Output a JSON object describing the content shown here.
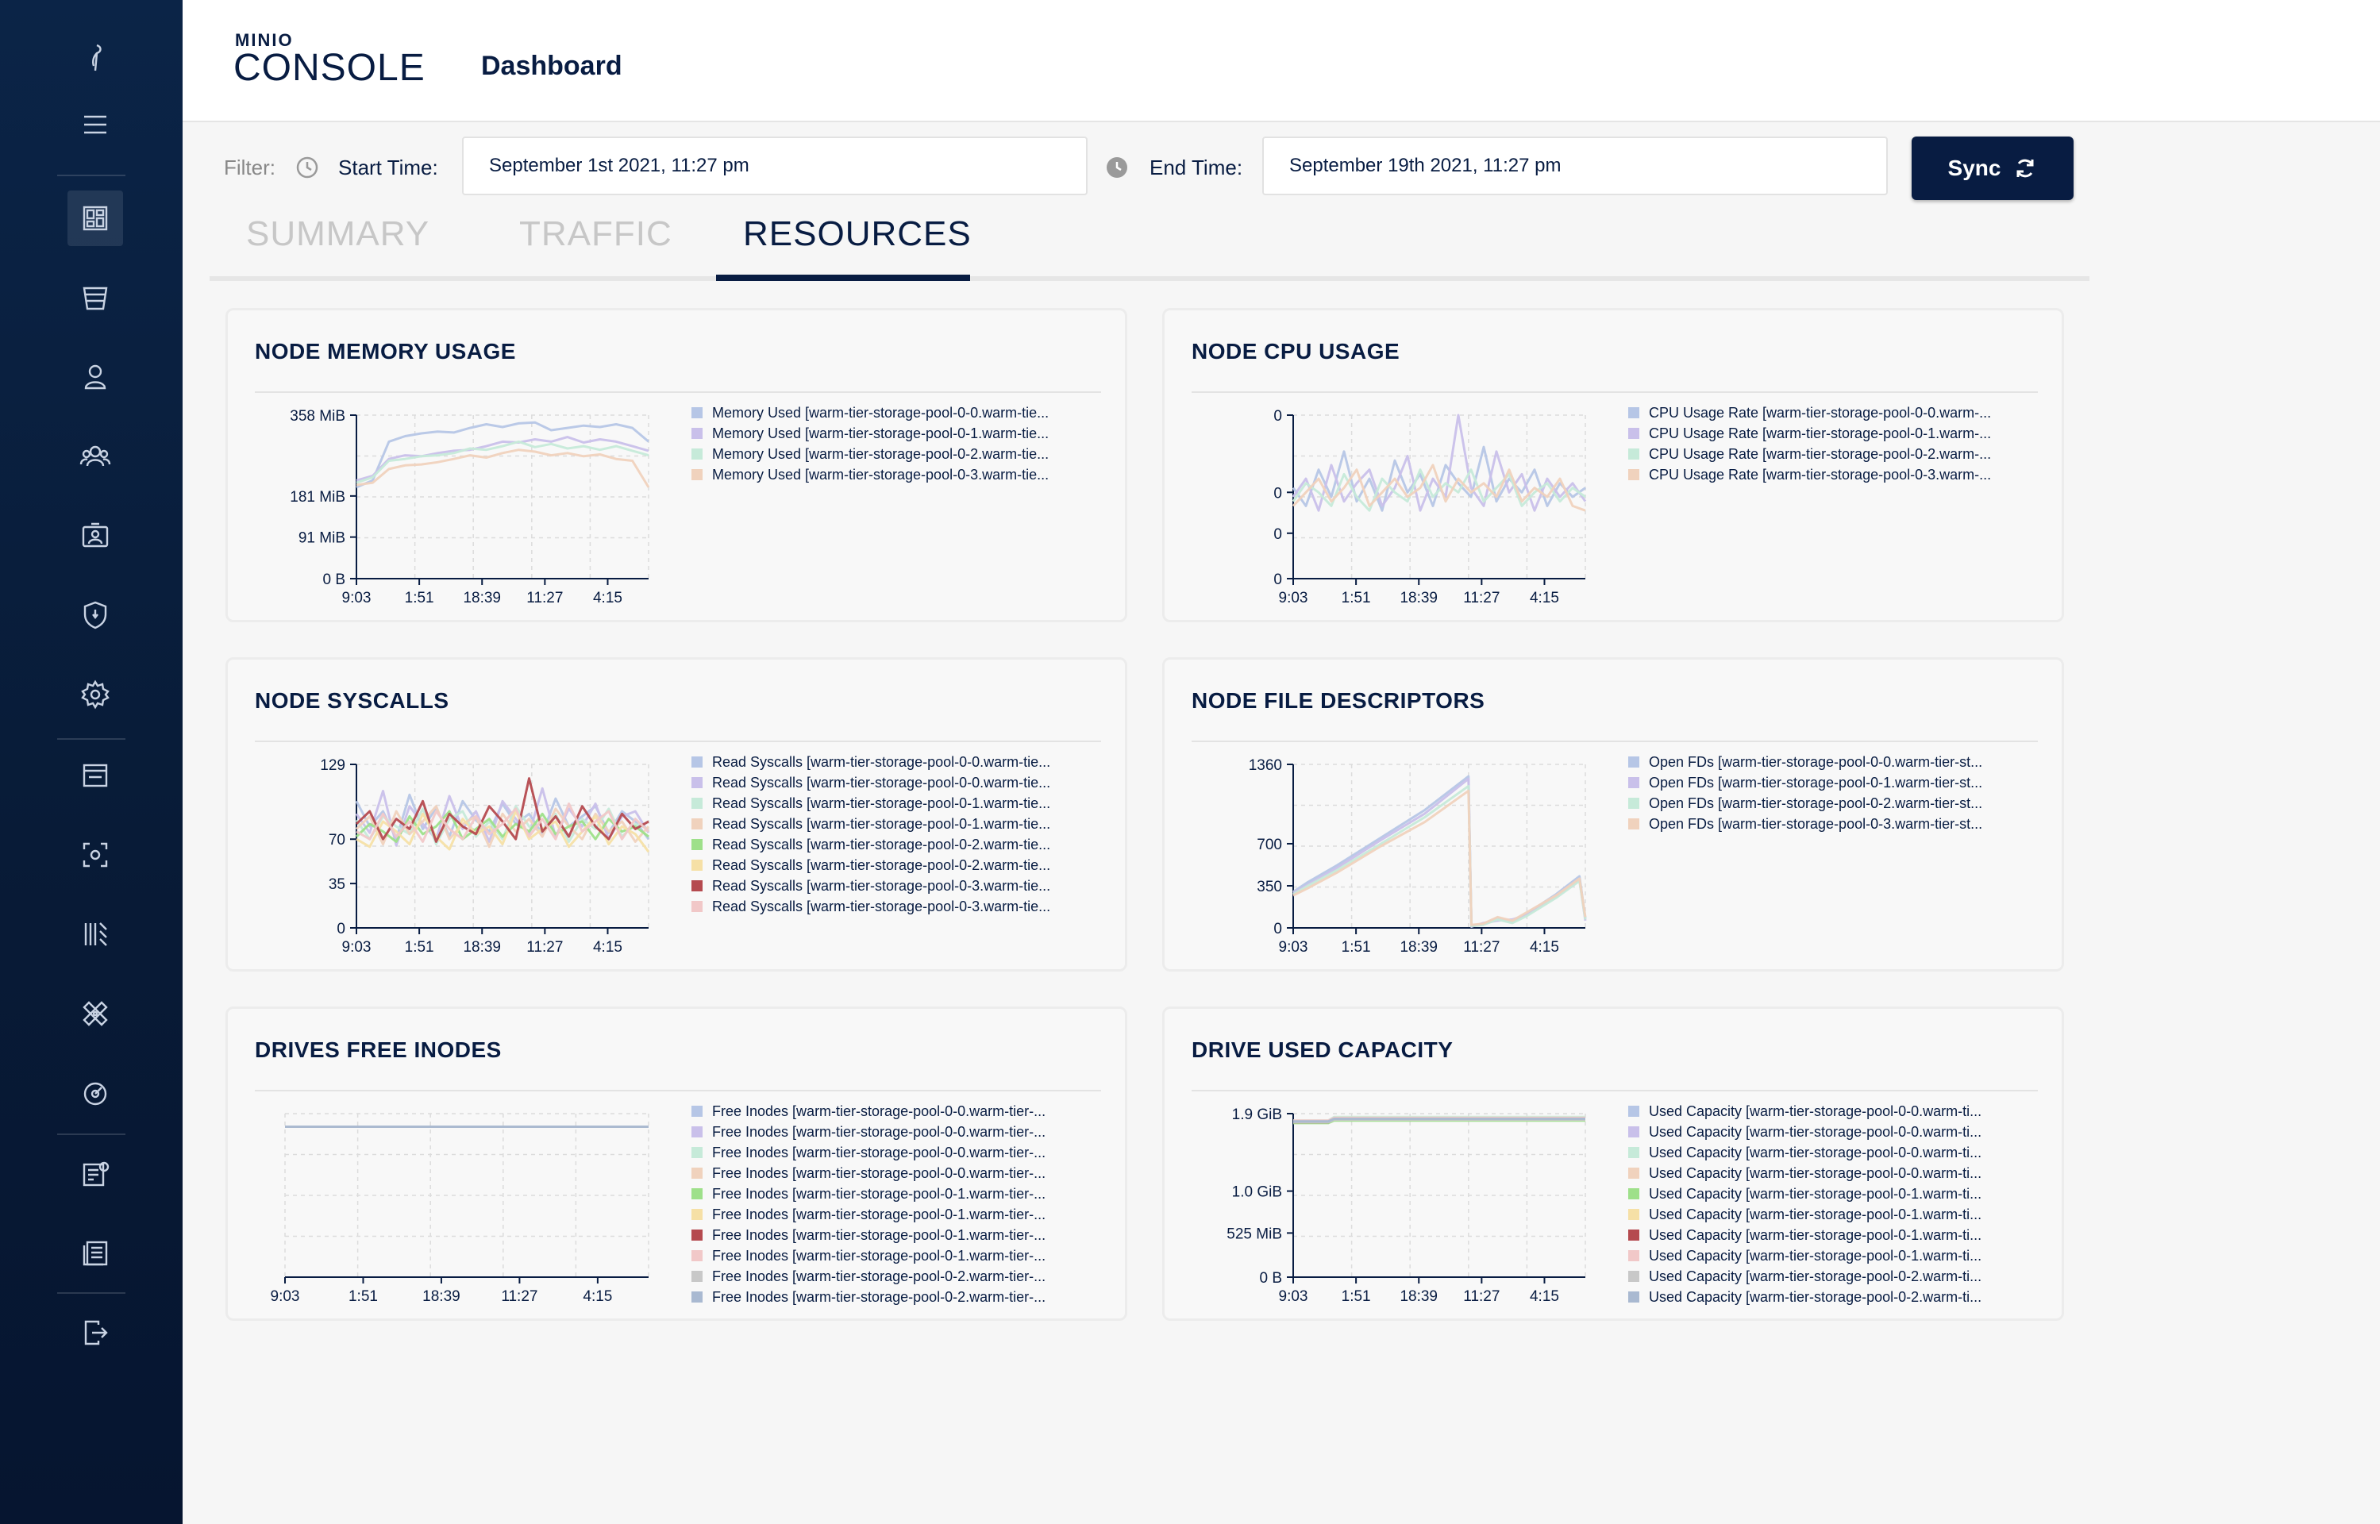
{
  "header": {
    "logo_top": "MINIO",
    "logo_main": "CONSOLE",
    "title": "Dashboard"
  },
  "sidebar": {
    "items": [
      {
        "icon": "minio-bird-icon"
      },
      {
        "icon": "menu-icon"
      },
      {
        "icon": "dashboard-icon",
        "active": true
      },
      {
        "icon": "bucket-icon"
      },
      {
        "icon": "user-icon"
      },
      {
        "icon": "groups-icon"
      },
      {
        "icon": "service-accounts-icon"
      },
      {
        "icon": "shield-icon"
      },
      {
        "icon": "settings-icon"
      },
      {
        "icon": "window-icon"
      },
      {
        "icon": "screenshot-icon"
      },
      {
        "icon": "tiers-icon"
      },
      {
        "icon": "heal-icon"
      },
      {
        "icon": "speedometer-icon"
      },
      {
        "icon": "license-icon"
      },
      {
        "icon": "documentation-icon"
      },
      {
        "icon": "logout-icon"
      }
    ]
  },
  "filter": {
    "label": "Filter:",
    "start_label": "Start Time:",
    "start_value": "September 1st 2021, 11:27 pm",
    "end_label": "End Time:",
    "end_value": "September 19th 2021, 11:27 pm",
    "sync_label": "Sync"
  },
  "tabs": [
    {
      "label": "SUMMARY",
      "active": false
    },
    {
      "label": "TRAFFIC",
      "active": false
    },
    {
      "label": "RESOURCES",
      "active": true
    }
  ],
  "colors": {
    "navy": "#081c42",
    "series": [
      "#b6c6e6",
      "#c9c0ea",
      "#c6ead9",
      "#f0d2bd",
      "#9ee08a",
      "#f6e0a6",
      "#b54a4f",
      "#f1c8c8",
      "#c8c8c8",
      "#a9b9d1"
    ]
  },
  "chart_data": [
    {
      "type": "line",
      "title": "NODE MEMORY USAGE",
      "x_ticks": [
        "9:03",
        "1:51",
        "18:39",
        "11:27",
        "4:15"
      ],
      "y_ticks": [
        "358 MiB",
        "181 MiB",
        "91 MiB",
        "0 B"
      ],
      "y_tick_values": [
        358,
        181,
        91,
        0
      ],
      "ylim": [
        0,
        358
      ],
      "grid": true,
      "legend_position": "right",
      "series": [
        {
          "name": "Memory Used [warm-tier-storage-pool-0-0.warm-tie...",
          "values": [
            200,
            215,
            300,
            312,
            318,
            322,
            320,
            330,
            338,
            332,
            340,
            342,
            325,
            330,
            335,
            332,
            338,
            330,
            300
          ]
        },
        {
          "name": "Memory Used [warm-tier-storage-pool-0-1.warm-tie...",
          "values": [
            215,
            225,
            262,
            270,
            268,
            275,
            280,
            282,
            290,
            300,
            298,
            305,
            300,
            310,
            298,
            305,
            300,
            290,
            280
          ]
        },
        {
          "name": "Memory Used [warm-tier-storage-pool-0-2.warm-tie...",
          "values": [
            210,
            222,
            258,
            262,
            268,
            270,
            275,
            285,
            282,
            290,
            300,
            288,
            295,
            285,
            290,
            282,
            290,
            280,
            270
          ]
        },
        {
          "name": "Memory Used [warm-tier-storage-pool-0-3.warm-tie...",
          "values": [
            205,
            210,
            240,
            248,
            250,
            255,
            262,
            270,
            265,
            275,
            282,
            278,
            270,
            275,
            268,
            272,
            262,
            258,
            200
          ]
        }
      ]
    },
    {
      "type": "line",
      "title": "NODE CPU USAGE",
      "x_ticks": [
        "9:03",
        "1:51",
        "18:39",
        "11:27",
        "4:15"
      ],
      "y_ticks": [
        "0",
        "0",
        "0",
        "0"
      ],
      "y_tick_values": [
        0.036,
        0.019,
        0.01,
        0
      ],
      "ylim": [
        0,
        0.036
      ],
      "grid": true,
      "legend_position": "right",
      "series": [
        {
          "name": "CPU Usage Rate [warm-tier-storage-pool-0-0.warm-...",
          "values": [
            0.02,
            0.016,
            0.024,
            0.018,
            0.028,
            0.017,
            0.022,
            0.015,
            0.026,
            0.019,
            0.023,
            0.016,
            0.025,
            0.021,
            0.018,
            0.029,
            0.017,
            0.022,
            0.019,
            0.024,
            0.016,
            0.021,
            0.018,
            0.02
          ]
        },
        {
          "name": "CPU Usage Rate [warm-tier-storage-pool-0-1.warm-...",
          "values": [
            0.018,
            0.022,
            0.015,
            0.025,
            0.017,
            0.021,
            0.024,
            0.016,
            0.02,
            0.027,
            0.015,
            0.022,
            0.018,
            0.036,
            0.02,
            0.016,
            0.028,
            0.019,
            0.023,
            0.015,
            0.022,
            0.018,
            0.021,
            0.017
          ]
        },
        {
          "name": "CPU Usage Rate [warm-tier-storage-pool-0-2.warm-...",
          "values": [
            0.017,
            0.021,
            0.019,
            0.016,
            0.023,
            0.018,
            0.015,
            0.022,
            0.019,
            0.017,
            0.024,
            0.018,
            0.021,
            0.019,
            0.024,
            0.017,
            0.02,
            0.023,
            0.016,
            0.019,
            0.021,
            0.017,
            0.02,
            0.018
          ]
        },
        {
          "name": "CPU Usage Rate [warm-tier-storage-pool-0-3.warm-...",
          "values": [
            0.016,
            0.019,
            0.022,
            0.017,
            0.02,
            0.024,
            0.016,
            0.019,
            0.022,
            0.018,
            0.02,
            0.025,
            0.017,
            0.022,
            0.019,
            0.021,
            0.018,
            0.024,
            0.017,
            0.02,
            0.018,
            0.022,
            0.016,
            0.015
          ]
        }
      ]
    },
    {
      "type": "line",
      "title": "NODE SYSCALLS",
      "x_ticks": [
        "9:03",
        "1:51",
        "18:39",
        "11:27",
        "4:15"
      ],
      "y_ticks": [
        "129",
        "70",
        "35",
        "0"
      ],
      "y_tick_values": [
        129,
        70,
        35,
        0
      ],
      "ylim": [
        0,
        129
      ],
      "grid": true,
      "legend_position": "right",
      "series": [
        {
          "name": "Read Syscalls [warm-tier-storage-pool-0-0.warm-tie...",
          "values": [
            100,
            80,
            92,
            70,
            105,
            78,
            95,
            72,
            100,
            85,
            76,
            98,
            82,
            90,
            74,
            102,
            80,
            88,
            96,
            75,
            92,
            84,
            70
          ]
        },
        {
          "name": "Read Syscalls [warm-tier-storage-pool-0-0.warm-tie...",
          "values": [
            90,
            75,
            108,
            65,
            96,
            82,
            70,
            104,
            78,
            92,
            68,
            100,
            86,
            74,
            110,
            72,
            94,
            80,
            98,
            70,
            88,
            92,
            75
          ]
        },
        {
          "name": "Read Syscalls [warm-tier-storage-pool-0-1.warm-tie...",
          "values": [
            85,
            70,
            88,
            80,
            74,
            94,
            66,
            86,
            92,
            72,
            84,
            70,
            96,
            80,
            76,
            90,
            68,
            86,
            78,
            94,
            72,
            82,
            78
          ]
        },
        {
          "name": "Read Syscalls [warm-tier-storage-pool-0-1.warm-tie...",
          "values": [
            78,
            88,
            66,
            92,
            74,
            84,
            96,
            70,
            82,
            88,
            64,
            90,
            76,
            86,
            72,
            94,
            80,
            70,
            90,
            76,
            84,
            68,
            80
          ]
        },
        {
          "name": "Read Syscalls [warm-tier-storage-pool-0-2.warm-tie...",
          "values": [
            72,
            82,
            76,
            68,
            88,
            74,
            80,
            92,
            70,
            78,
            86,
            72,
            82,
            76,
            90,
            74,
            80,
            84,
            70,
            86,
            76,
            80,
            72
          ]
        },
        {
          "name": "Read Syscalls [warm-tier-storage-pool-0-2.warm-tie...",
          "values": [
            70,
            64,
            84,
            76,
            66,
            90,
            72,
            62,
            86,
            74,
            80,
            66,
            92,
            70,
            78,
            84,
            64,
            76,
            88,
            66,
            80,
            74,
            60
          ]
        },
        {
          "name": "Read Syscalls [warm-tier-storage-pool-0-3.warm-tie...",
          "values": [
            82,
            92,
            70,
            86,
            78,
            100,
            68,
            90,
            80,
            74,
            96,
            84,
            70,
            118,
            76,
            88,
            72,
            96,
            80,
            70,
            90,
            78,
            84
          ]
        },
        {
          "name": "Read Syscalls [warm-tier-storage-pool-0-3.warm-tie...",
          "values": [
            76,
            70,
            90,
            72,
            84,
            68,
            92,
            78,
            70,
            88,
            74,
            82,
            94,
            72,
            86,
            70,
            98,
            76,
            84,
            92,
            70,
            86,
            76
          ]
        }
      ]
    },
    {
      "type": "line",
      "title": "NODE FILE DESCRIPTORS",
      "x_ticks": [
        "9:03",
        "1:51",
        "18:39",
        "11:27",
        "4:15"
      ],
      "y_ticks": [
        "1360",
        "700",
        "350",
        "0"
      ],
      "y_tick_values": [
        1360,
        700,
        350,
        0
      ],
      "ylim": [
        0,
        1360
      ],
      "grid": true,
      "legend_position": "right",
      "series": [
        {
          "name": "Open FDs [warm-tier-storage-pool-0-0.warm-tier-st...",
          "x": [
            0,
            0.05,
            0.15,
            0.3,
            0.45,
            0.6,
            0.61,
            0.65,
            0.7,
            0.75,
            0.8,
            0.9,
            0.98,
            1.0
          ],
          "values": [
            300,
            380,
            520,
            750,
            980,
            1260,
            20,
            30,
            80,
            50,
            120,
            280,
            430,
            80
          ]
        },
        {
          "name": "Open FDs [warm-tier-storage-pool-0-1.warm-tier-st...",
          "x": [
            0,
            0.05,
            0.15,
            0.3,
            0.45,
            0.6,
            0.61,
            0.65,
            0.7,
            0.75,
            0.8,
            0.9,
            0.98,
            1.0
          ],
          "values": [
            290,
            360,
            500,
            730,
            950,
            1240,
            10,
            40,
            60,
            70,
            110,
            260,
            400,
            60
          ]
        },
        {
          "name": "Open FDs [warm-tier-storage-pool-0-2.warm-tier-st...",
          "x": [
            0,
            0.05,
            0.15,
            0.3,
            0.45,
            0.6,
            0.61,
            0.65,
            0.7,
            0.75,
            0.8,
            0.9,
            0.98,
            1.0
          ],
          "values": [
            280,
            350,
            480,
            700,
            920,
            1180,
            15,
            25,
            70,
            40,
            100,
            250,
            390,
            70
          ]
        },
        {
          "name": "Open FDs [warm-tier-storage-pool-0-3.warm-tier-st...",
          "x": [
            0,
            0.05,
            0.15,
            0.3,
            0.45,
            0.6,
            0.61,
            0.65,
            0.7,
            0.75,
            0.8,
            0.9,
            0.98,
            1.0
          ],
          "values": [
            270,
            330,
            460,
            680,
            880,
            1140,
            25,
            35,
            90,
            60,
            130,
            270,
            410,
            90
          ]
        }
      ]
    },
    {
      "type": "line",
      "title": "DRIVES FREE INODES",
      "x_ticks": [
        "9:03",
        "1:51",
        "18:39",
        "11:27",
        "4:15"
      ],
      "y_ticks": [],
      "ylim": [
        0,
        1
      ],
      "grid": true,
      "legend_position": "right",
      "series": [
        {
          "name": "Free Inodes [warm-tier-storage-pool-0-0.warm-tier-...",
          "values": [
            0.92,
            0.92
          ]
        },
        {
          "name": "Free Inodes [warm-tier-storage-pool-0-0.warm-tier-...",
          "values": [
            0.92,
            0.92
          ]
        },
        {
          "name": "Free Inodes [warm-tier-storage-pool-0-0.warm-tier-...",
          "values": [
            0.92,
            0.92
          ]
        },
        {
          "name": "Free Inodes [warm-tier-storage-pool-0-0.warm-tier-...",
          "values": [
            0.92,
            0.92
          ]
        },
        {
          "name": "Free Inodes [warm-tier-storage-pool-0-1.warm-tier-...",
          "values": [
            0.92,
            0.92
          ]
        },
        {
          "name": "Free Inodes [warm-tier-storage-pool-0-1.warm-tier-...",
          "values": [
            0.92,
            0.92
          ]
        },
        {
          "name": "Free Inodes [warm-tier-storage-pool-0-1.warm-tier-...",
          "values": [
            0.92,
            0.92
          ]
        },
        {
          "name": "Free Inodes [warm-tier-storage-pool-0-1.warm-tier-...",
          "values": [
            0.92,
            0.92
          ]
        },
        {
          "name": "Free Inodes [warm-tier-storage-pool-0-2.warm-tier-...",
          "values": [
            0.92,
            0.92
          ]
        },
        {
          "name": "Free Inodes [warm-tier-storage-pool-0-2.warm-tier-...",
          "values": [
            0.92,
            0.92
          ]
        }
      ]
    },
    {
      "type": "line",
      "title": "DRIVE USED CAPACITY",
      "x_ticks": [
        "9:03",
        "1:51",
        "18:39",
        "11:27",
        "4:15"
      ],
      "y_ticks": [
        "1.9 GiB",
        "1.0 GiB",
        "525 MiB",
        "0 B"
      ],
      "y_tick_values": [
        1.9,
        1.0,
        0.5127,
        0
      ],
      "ylim": [
        0,
        1.9
      ],
      "grid": true,
      "legend_position": "right",
      "series": [
        {
          "name": "Used Capacity [warm-tier-storage-pool-0-0.warm-ti...",
          "x": [
            0,
            0.12,
            0.14,
            1.0
          ],
          "values": [
            1.8,
            1.8,
            1.85,
            1.85
          ]
        },
        {
          "name": "Used Capacity [warm-tier-storage-pool-0-0.warm-ti...",
          "x": [
            0,
            0.12,
            0.14,
            1.0
          ],
          "values": [
            1.81,
            1.81,
            1.84,
            1.84
          ]
        },
        {
          "name": "Used Capacity [warm-tier-storage-pool-0-0.warm-ti...",
          "x": [
            0,
            0.12,
            0.14,
            1.0
          ],
          "values": [
            1.82,
            1.82,
            1.86,
            1.86
          ]
        },
        {
          "name": "Used Capacity [warm-tier-storage-pool-0-0.warm-ti...",
          "x": [
            0,
            0.12,
            0.14,
            1.0
          ],
          "values": [
            1.8,
            1.8,
            1.83,
            1.83
          ]
        },
        {
          "name": "Used Capacity [warm-tier-storage-pool-0-1.warm-ti...",
          "x": [
            0,
            0.12,
            0.14,
            1.0
          ],
          "values": [
            1.79,
            1.79,
            1.82,
            1.82
          ]
        },
        {
          "name": "Used Capacity [warm-tier-storage-pool-0-1.warm-ti...",
          "x": [
            0,
            0.12,
            0.14,
            1.0
          ],
          "values": [
            1.81,
            1.81,
            1.85,
            1.85
          ]
        },
        {
          "name": "Used Capacity [warm-tier-storage-pool-0-1.warm-ti...",
          "x": [
            0,
            0.12,
            0.14,
            1.0
          ],
          "values": [
            1.8,
            1.8,
            1.84,
            1.84
          ]
        },
        {
          "name": "Used Capacity [warm-tier-storage-pool-0-1.warm-ti...",
          "x": [
            0,
            0.12,
            0.14,
            1.0
          ],
          "values": [
            1.82,
            1.82,
            1.85,
            1.85
          ]
        },
        {
          "name": "Used Capacity [warm-tier-storage-pool-0-2.warm-ti...",
          "x": [
            0,
            0.12,
            0.14,
            1.0
          ],
          "values": [
            1.8,
            1.8,
            1.83,
            1.83
          ]
        },
        {
          "name": "Used Capacity [warm-tier-storage-pool-0-2.warm-ti...",
          "x": [
            0,
            0.12,
            0.14,
            1.0
          ],
          "values": [
            1.81,
            1.81,
            1.84,
            1.84
          ]
        }
      ]
    }
  ]
}
